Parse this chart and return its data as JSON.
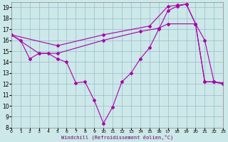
{
  "background_color": "#cce8e8",
  "line_color": "#aa00aa",
  "grid_color": "#99bbcc",
  "xlabel": "Windchill (Refroidissement éolien,°C)",
  "xlim": [
    0,
    23
  ],
  "ylim": [
    8,
    19.5
  ],
  "yticks": [
    8,
    9,
    10,
    11,
    12,
    13,
    14,
    15,
    16,
    17,
    18,
    19
  ],
  "xticks": [
    0,
    1,
    2,
    3,
    4,
    5,
    6,
    7,
    8,
    9,
    10,
    11,
    12,
    13,
    14,
    15,
    16,
    17,
    18,
    19,
    20,
    21,
    22,
    23
  ],
  "line1_x": [
    0,
    1,
    2,
    3,
    4,
    5,
    6,
    7,
    8,
    9,
    10,
    11,
    12,
    13,
    14,
    15,
    16,
    17,
    18,
    19,
    20,
    21,
    22,
    23
  ],
  "line1_y": [
    16.5,
    16.0,
    14.3,
    14.8,
    14.8,
    14.3,
    14.0,
    12.1,
    12.2,
    10.5,
    8.4,
    9.9,
    12.2,
    13.0,
    14.3,
    15.3,
    17.0,
    18.7,
    19.1,
    19.3,
    17.5,
    16.0,
    12.2,
    12.1
  ],
  "line2_x": [
    0,
    5,
    10,
    15,
    17,
    18,
    19,
    20,
    21,
    22,
    23
  ],
  "line2_y": [
    16.5,
    15.5,
    16.5,
    17.3,
    19.1,
    19.2,
    19.3,
    17.5,
    12.2,
    12.2,
    12.0
  ],
  "line3_x": [
    0,
    3,
    5,
    10,
    14,
    16,
    17,
    20,
    21,
    22,
    23
  ],
  "line3_y": [
    16.5,
    14.8,
    14.8,
    16.0,
    16.8,
    17.1,
    17.5,
    17.5,
    12.2,
    12.2,
    12.0
  ]
}
